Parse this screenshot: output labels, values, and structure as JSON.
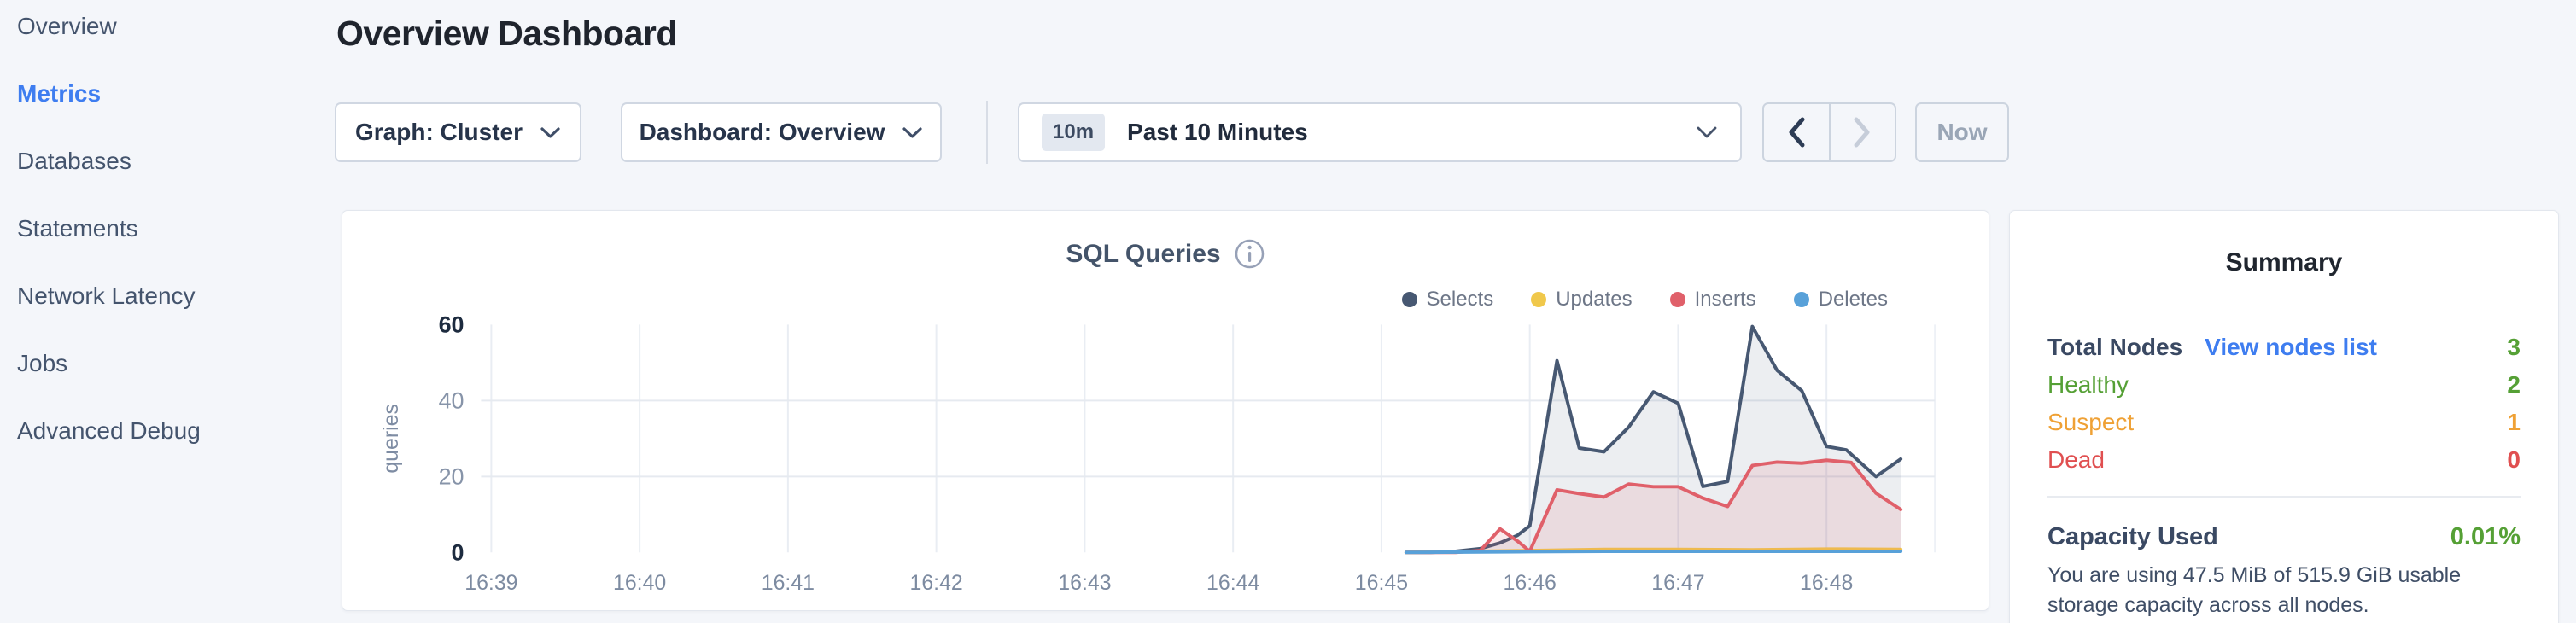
{
  "colors": {
    "accent": "#3e7df0",
    "green": "#55a035",
    "orange": "#efa135",
    "red": "#e04f50",
    "page_bg": "#f4f6fa"
  },
  "sidebar": {
    "items": [
      {
        "label": "Overview",
        "active": false
      },
      {
        "label": "Metrics",
        "active": true
      },
      {
        "label": "Databases",
        "active": false
      },
      {
        "label": "Statements",
        "active": false
      },
      {
        "label": "Network Latency",
        "active": false
      },
      {
        "label": "Jobs",
        "active": false
      },
      {
        "label": "Advanced Debug",
        "active": false
      }
    ]
  },
  "header": {
    "title": "Overview Dashboard"
  },
  "toolbar": {
    "graph_dropdown": {
      "label": "Graph: Cluster"
    },
    "dashboard_dropdown": {
      "label": "Dashboard: Overview"
    },
    "time_selector": {
      "badge": "10m",
      "label": "Past 10 Minutes"
    },
    "now_label": "Now"
  },
  "chart_data": {
    "type": "area",
    "title": "SQL Queries",
    "ylabel": "queries",
    "x_ticks": [
      "16:39",
      "16:40",
      "16:41",
      "16:42",
      "16:43",
      "16:44",
      "16:45",
      "16:46",
      "16:47",
      "16:48"
    ],
    "y_ticks": [
      0,
      20,
      40,
      60
    ],
    "grid_y": [
      20,
      40
    ],
    "ylim": [
      0,
      60
    ],
    "legend_position": "top-right",
    "grid": true,
    "series": [
      {
        "name": "Selects",
        "color": "#475872",
        "fill": "rgba(71,88,114,0.10)",
        "x": [
          "16:45:10",
          "16:45:20",
          "16:45:30",
          "16:45:40",
          "16:45:48",
          "16:45:55",
          "16:46:00",
          "16:46:11",
          "16:46:20",
          "16:46:30",
          "16:46:40",
          "16:46:50",
          "16:47:00",
          "16:47:10",
          "16:47:20",
          "16:47:30",
          "16:47:40",
          "16:47:50",
          "16:48:00",
          "16:48:08",
          "16:48:20",
          "16:48:30"
        ],
        "values": [
          0,
          0,
          0.3,
          1,
          2.5,
          4.5,
          7,
          50.5,
          27.5,
          26.5,
          33,
          42.3,
          39.3,
          17.4,
          18.7,
          59.5,
          48,
          42.6,
          27.9,
          27,
          20,
          24.6
        ]
      },
      {
        "name": "Updates",
        "color": "#f0c84b",
        "fill": "rgba(242,201,76,0.18)",
        "x": [
          "16:45:10",
          "16:46:00",
          "16:46:30",
          "16:47:00",
          "16:47:30",
          "16:48:00",
          "16:48:30"
        ],
        "values": [
          0,
          0.5,
          0.8,
          0.8,
          0.7,
          0.9,
          0.8
        ]
      },
      {
        "name": "Inserts",
        "color": "#e0606a",
        "fill": "rgba(224,96,106,0.13)",
        "x": [
          "16:45:10",
          "16:45:20",
          "16:45:30",
          "16:45:40",
          "16:45:48",
          "16:45:55",
          "16:46:00",
          "16:46:11",
          "16:46:20",
          "16:46:30",
          "16:46:40",
          "16:46:50",
          "16:47:00",
          "16:47:10",
          "16:47:20",
          "16:47:30",
          "16:47:40",
          "16:47:50",
          "16:48:00",
          "16:48:10",
          "16:48:20",
          "16:48:30"
        ],
        "values": [
          0,
          0,
          0,
          0.5,
          6.2,
          3,
          0.3,
          16.5,
          15.5,
          14.6,
          18,
          17.3,
          17.3,
          14.3,
          12.1,
          22.9,
          23.8,
          23.5,
          24.3,
          23.7,
          15.6,
          11.3
        ]
      },
      {
        "name": "Deletes",
        "color": "#58a1d9",
        "fill": "rgba(88,161,217,0.18)",
        "x": [
          "16:45:10",
          "16:46:00",
          "16:46:30",
          "16:47:00",
          "16:47:30",
          "16:48:00",
          "16:48:30"
        ],
        "values": [
          0,
          0.2,
          0.3,
          0.3,
          0.3,
          0.3,
          0.3
        ]
      }
    ]
  },
  "summary": {
    "title": "Summary",
    "total_label": "Total Nodes",
    "view_link": "View nodes list",
    "total_value": "3",
    "statuses": [
      {
        "label": "Healthy",
        "value": "2",
        "color": "#55a035"
      },
      {
        "label": "Suspect",
        "value": "1",
        "color": "#efa135"
      },
      {
        "label": "Dead",
        "value": "0",
        "color": "#e04f50"
      }
    ],
    "capacity_label": "Capacity Used",
    "capacity_value": "0.01%",
    "capacity_caption": "You are using 47.5 MiB of 515.9 GiB usable storage capacity across all nodes."
  }
}
